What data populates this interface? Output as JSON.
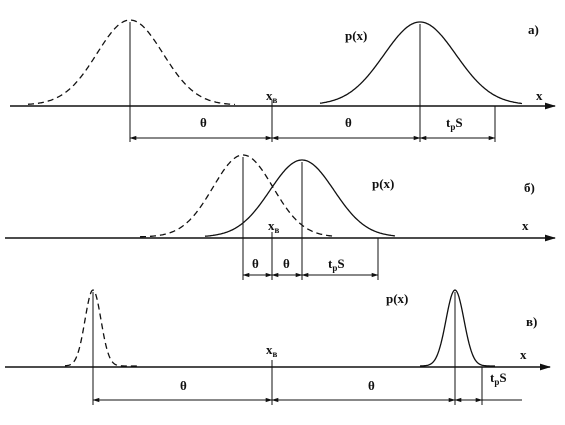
{
  "panels": [
    {
      "label": "а)",
      "density": "p(x)",
      "axis": "x",
      "boundary": {
        "base": "x",
        "sub": "в"
      },
      "spans": [
        "θ",
        "θ"
      ],
      "offset": {
        "base": "t",
        "sub": "p",
        "tail": "S"
      }
    },
    {
      "label": "б)",
      "density": "p(x)",
      "axis": "x",
      "boundary": {
        "base": "x",
        "sub": "в"
      },
      "spans": [
        "θ",
        "θ"
      ],
      "offset": {
        "base": "t",
        "sub": "p",
        "tail": "S"
      }
    },
    {
      "label": "в)",
      "density": "p(x)",
      "axis": "x",
      "boundary": {
        "base": "x",
        "sub": "в"
      },
      "spans": [
        "θ",
        "θ"
      ],
      "offset": {
        "base": "t",
        "sub": "p",
        "tail": "S"
      }
    }
  ]
}
